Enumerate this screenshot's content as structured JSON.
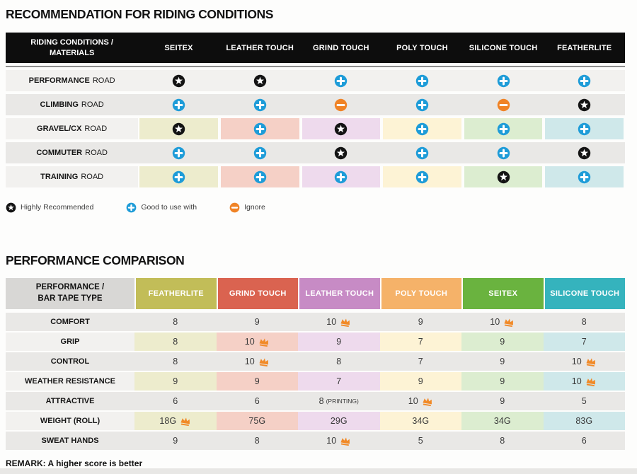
{
  "riding_table": {
    "title": "RECOMMENDATION FOR RIDING CONDITIONS",
    "corner_header": [
      "RIDING CONDITIONS /",
      "MATERIALS"
    ],
    "columns": [
      "SEITEX",
      "LEATHER TOUCH",
      "GRIND TOUCH",
      "POLY TOUCH",
      "SILICONE TOUCH",
      "FEATHERLITE"
    ],
    "cell_tints": [
      "#edeccd",
      "#f5d0c6",
      "#eedaed",
      "#fdf3d5",
      "#dcedd0",
      "#cfe8ea"
    ],
    "rows": [
      {
        "name": "PERFORMANCE",
        "suffix": "ROAD",
        "tinted": false,
        "icons": [
          "star",
          "star",
          "plus",
          "plus",
          "plus",
          "plus"
        ]
      },
      {
        "name": "CLIMBING",
        "suffix": "ROAD",
        "tinted": false,
        "icons": [
          "plus",
          "plus",
          "minus",
          "plus",
          "minus",
          "star"
        ]
      },
      {
        "name": "GRAVEL/CX",
        "suffix": "ROAD",
        "tinted": true,
        "icons": [
          "star",
          "plus",
          "star",
          "plus",
          "plus",
          "plus"
        ]
      },
      {
        "name": "COMMUTER",
        "suffix": "ROAD",
        "tinted": false,
        "icons": [
          "plus",
          "plus",
          "star",
          "plus",
          "plus",
          "star"
        ]
      },
      {
        "name": "TRAINING",
        "suffix": "ROAD",
        "tinted": true,
        "icons": [
          "plus",
          "plus",
          "plus",
          "plus",
          "star",
          "plus"
        ]
      }
    ],
    "legend": [
      {
        "icon": "star",
        "label": "Highly Recommended"
      },
      {
        "icon": "plus",
        "label": "Good to use with"
      },
      {
        "icon": "minus",
        "label": "Ignore"
      }
    ]
  },
  "performance_table": {
    "title": "PERFORMANCE COMPARISON",
    "corner_header": [
      "PERFORMANCE /",
      "BAR TAPE TYPE"
    ],
    "columns": [
      {
        "label": "FEATHERLITE",
        "color": "#c2bd58",
        "tint": "#edeccd"
      },
      {
        "label": "GRIND TOUCH",
        "color": "#da6350",
        "tint": "#f5d0c6"
      },
      {
        "label": "LEATHER TOUCH",
        "color": "#c78bc5",
        "tint": "#eedaed"
      },
      {
        "label": "POLY TOUCH",
        "color": "#f5b269",
        "tint": "#fdf3d5"
      },
      {
        "label": "SEITEX",
        "color": "#6ab33f",
        "tint": "#dcedd0"
      },
      {
        "label": "SILICONE TOUCH",
        "color": "#35b3bd",
        "tint": "#cfe8ea"
      }
    ],
    "rows": [
      {
        "label": "COMFORT",
        "tinted": false,
        "cells": [
          {
            "value": "8"
          },
          {
            "value": "9"
          },
          {
            "value": "10",
            "crown": true
          },
          {
            "value": "9"
          },
          {
            "value": "10",
            "crown": true
          },
          {
            "value": "8"
          }
        ]
      },
      {
        "label": "GRIP",
        "tinted": true,
        "cells": [
          {
            "value": "8"
          },
          {
            "value": "10",
            "crown": true
          },
          {
            "value": "9"
          },
          {
            "value": "7"
          },
          {
            "value": "9"
          },
          {
            "value": "7"
          }
        ]
      },
      {
        "label": "CONTROL",
        "tinted": false,
        "cells": [
          {
            "value": "8"
          },
          {
            "value": "10",
            "crown": true
          },
          {
            "value": "8"
          },
          {
            "value": "7"
          },
          {
            "value": "9"
          },
          {
            "value": "10",
            "crown": true
          }
        ]
      },
      {
        "label": "WEATHER RESISTANCE",
        "tinted": true,
        "cells": [
          {
            "value": "9"
          },
          {
            "value": "9"
          },
          {
            "value": "7"
          },
          {
            "value": "9"
          },
          {
            "value": "9"
          },
          {
            "value": "10",
            "crown": true
          }
        ]
      },
      {
        "label": "ATTRACTIVE",
        "tinted": false,
        "cells": [
          {
            "value": "6"
          },
          {
            "value": "6"
          },
          {
            "value": "8",
            "note": "(PRINTING)"
          },
          {
            "value": "10",
            "crown": true
          },
          {
            "value": "9"
          },
          {
            "value": "5"
          }
        ]
      },
      {
        "label": "WEIGHT (ROLL)",
        "tinted": true,
        "cells": [
          {
            "value": "18G",
            "crown": true
          },
          {
            "value": "75G"
          },
          {
            "value": "29G"
          },
          {
            "value": "34G"
          },
          {
            "value": "34G"
          },
          {
            "value": "83G"
          }
        ]
      },
      {
        "label": "SWEAT HANDS",
        "tinted": false,
        "cells": [
          {
            "value": "9"
          },
          {
            "value": "8"
          },
          {
            "value": "10",
            "crown": true
          },
          {
            "value": "5"
          },
          {
            "value": "8"
          },
          {
            "value": "6"
          }
        ]
      }
    ],
    "remark": "REMARK: A higher score is better"
  },
  "icon_colors": {
    "star_bg": "#141414",
    "plus_bg": "#1e9cd8",
    "minus_bg": "#f08326",
    "crown": "#f18a28"
  },
  "chart_data": [
    {
      "type": "table",
      "title": "RECOMMENDATION FOR RIDING CONDITIONS",
      "columns": [
        "RIDING CONDITIONS / MATERIALS",
        "SEITEX",
        "LEATHER TOUCH",
        "GRIND TOUCH",
        "POLY TOUCH",
        "SILICONE TOUCH",
        "FEATHERLITE"
      ],
      "legend": {
        "star": "Highly Recommended",
        "plus": "Good to use with",
        "minus": "Ignore"
      },
      "rows": [
        [
          "PERFORMANCE ROAD",
          "star",
          "star",
          "plus",
          "plus",
          "plus",
          "plus"
        ],
        [
          "CLIMBING ROAD",
          "plus",
          "plus",
          "minus",
          "plus",
          "minus",
          "star"
        ],
        [
          "GRAVEL/CX ROAD",
          "star",
          "plus",
          "star",
          "plus",
          "plus",
          "plus"
        ],
        [
          "COMMUTER ROAD",
          "plus",
          "plus",
          "star",
          "plus",
          "plus",
          "star"
        ],
        [
          "TRAINING ROAD",
          "plus",
          "plus",
          "plus",
          "plus",
          "star",
          "plus"
        ]
      ]
    },
    {
      "type": "table",
      "title": "PERFORMANCE COMPARISON",
      "columns": [
        "PERFORMANCE / BAR TAPE TYPE",
        "FEATHERLITE",
        "GRIND TOUCH",
        "LEATHER TOUCH",
        "POLY TOUCH",
        "SEITEX",
        "SILICONE TOUCH"
      ],
      "rows": [
        [
          "COMFORT",
          "8",
          "9",
          "10 (crown)",
          "9",
          "10 (crown)",
          "8"
        ],
        [
          "GRIP",
          "8",
          "10 (crown)",
          "9",
          "7",
          "9",
          "7"
        ],
        [
          "CONTROL",
          "8",
          "10 (crown)",
          "8",
          "7",
          "9",
          "10 (crown)"
        ],
        [
          "WEATHER RESISTANCE",
          "9",
          "9",
          "7",
          "9",
          "9",
          "10 (crown)"
        ],
        [
          "ATTRACTIVE",
          "6",
          "6",
          "8 (PRINTING)",
          "10 (crown)",
          "9",
          "5"
        ],
        [
          "WEIGHT (ROLL)",
          "18G (crown)",
          "75G",
          "29G",
          "34G",
          "34G",
          "83G"
        ],
        [
          "SWEAT HANDS",
          "9",
          "8",
          "10 (crown)",
          "5",
          "8",
          "6"
        ]
      ],
      "remark": "REMARK: A higher score is better"
    }
  ]
}
